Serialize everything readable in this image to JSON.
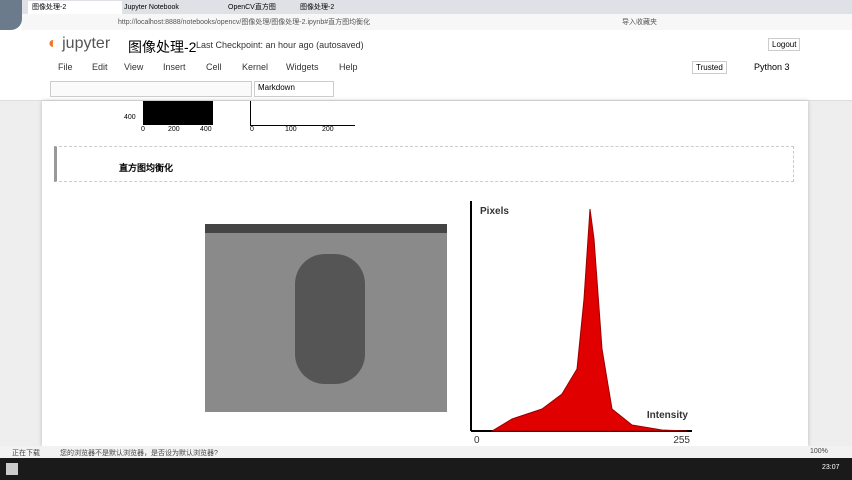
{
  "browser": {
    "tabs": [
      "图像处理-2",
      "Jupyter Notebook",
      "OpenCV直方图",
      "图像处理-2"
    ],
    "url": "http://localhost:8888/notebooks/opencv/图像处理/图像处理-2.ipynb#直方图均衡化",
    "bookmark": "导入收藏夹"
  },
  "header": {
    "logo": "jupyter",
    "title": "图像处理-2",
    "checkpoint": "Last Checkpoint: an hour ago (autosaved)",
    "logout": "Logout"
  },
  "menu": [
    "File",
    "Edit",
    "View",
    "Insert",
    "Cell",
    "Kernel",
    "Widgets",
    "Help"
  ],
  "status": {
    "trusted": "Trusted",
    "kernel": "Python 3"
  },
  "toolbar": {
    "cell_type": "Markdown"
  },
  "prev_output": {
    "left_ytick": "400",
    "left_xticks": [
      "0",
      "200",
      "400"
    ],
    "right_xticks": [
      "0",
      "100",
      "200"
    ]
  },
  "cell": {
    "heading": "直方图均衡化"
  },
  "histogram": {
    "ylabel": "Pixels",
    "xlabel": "Intensity",
    "xmin": "0",
    "xmax": "255"
  },
  "statusbar": {
    "left": "正在下载",
    "message": "您的浏览器不是默认浏览器，是否设为默认浏览器?",
    "zoom": "100%"
  },
  "taskbar": {
    "time": "23:07"
  }
}
